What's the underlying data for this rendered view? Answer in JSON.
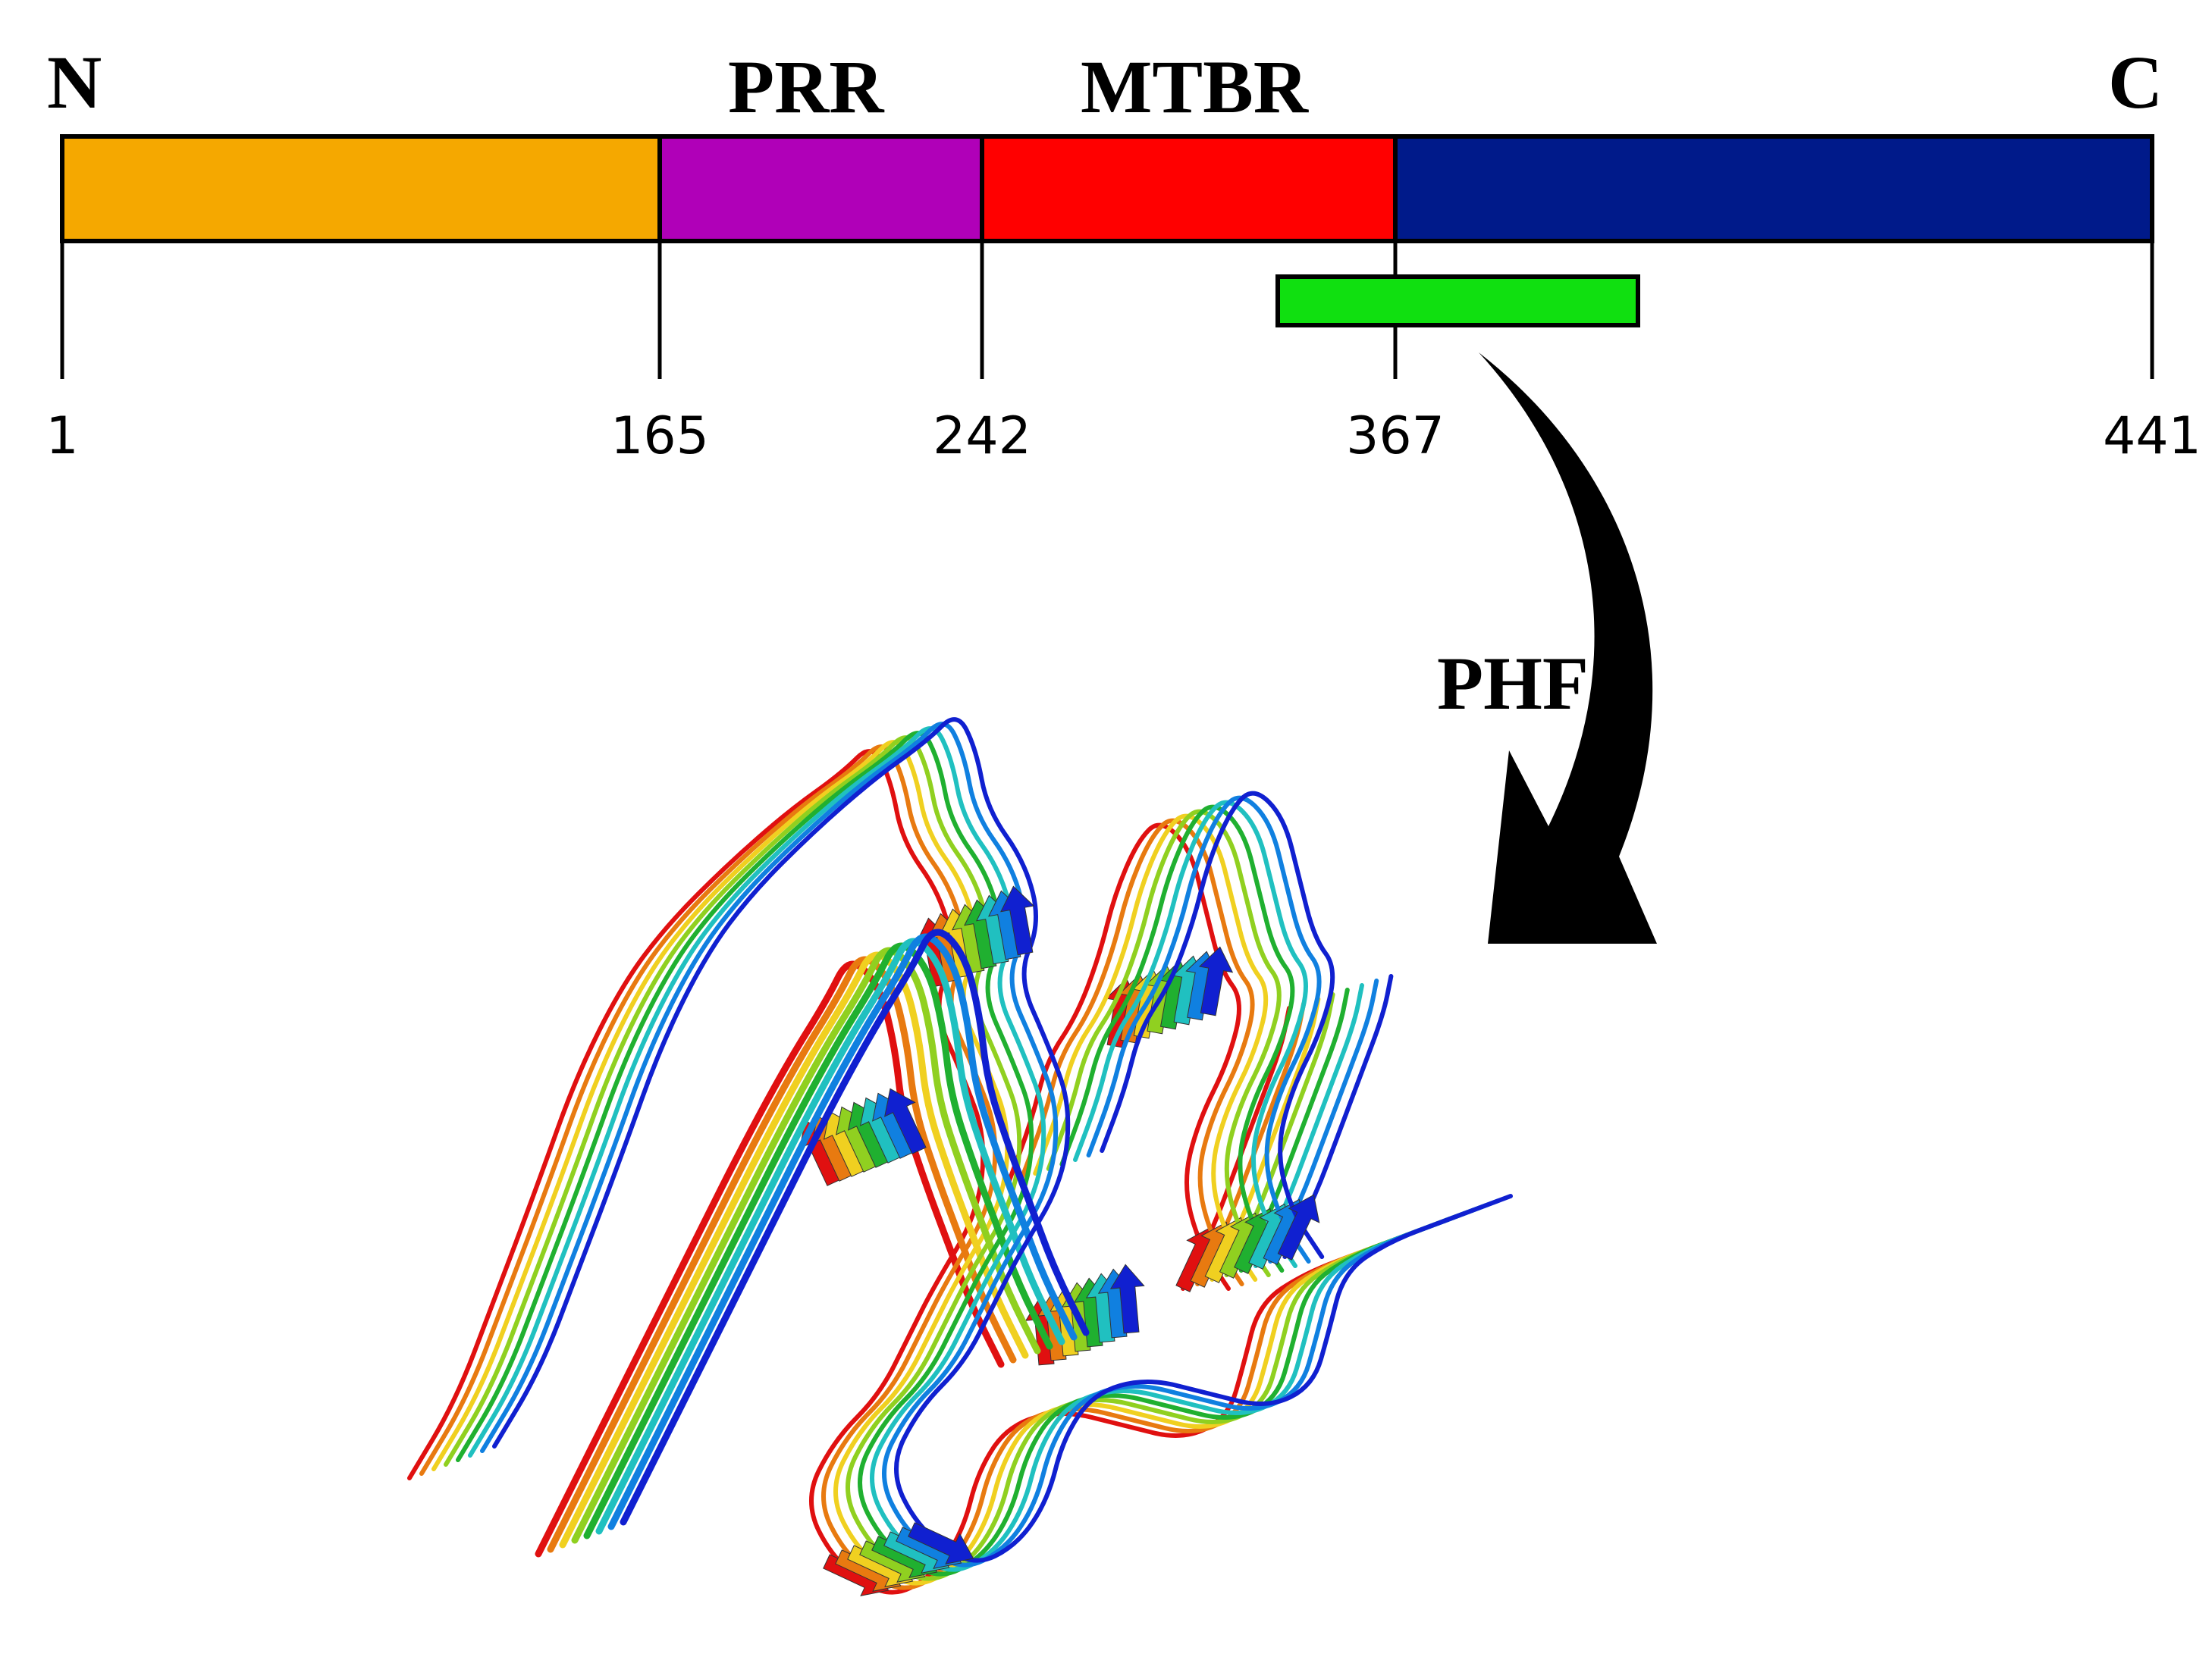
{
  "labels": {
    "n_terminus": "N",
    "c_terminus": "C",
    "prr": "PRR",
    "mtbr": "MTBR",
    "phf": "PHF"
  },
  "residue_ticks": [
    "1",
    "165",
    "242",
    "367",
    "441"
  ],
  "domains": [
    {
      "name": "N-terminal",
      "start": 1,
      "end": 165,
      "color": "#f5a800"
    },
    {
      "name": "PRR",
      "start": 165,
      "end": 242,
      "color": "#b000b8"
    },
    {
      "name": "MTBR",
      "start": 242,
      "end": 367,
      "color": "#ff0000"
    },
    {
      "name": "C-terminal",
      "start": 367,
      "end": 441,
      "color": "#001a8a"
    }
  ],
  "core_segment": {
    "color": "#10e010"
  },
  "ribbon_palette": [
    "#e01010",
    "#e87a10",
    "#f0d020",
    "#90d020",
    "#20b030",
    "#20c0c0",
    "#1080e0",
    "#1020d0"
  ]
}
